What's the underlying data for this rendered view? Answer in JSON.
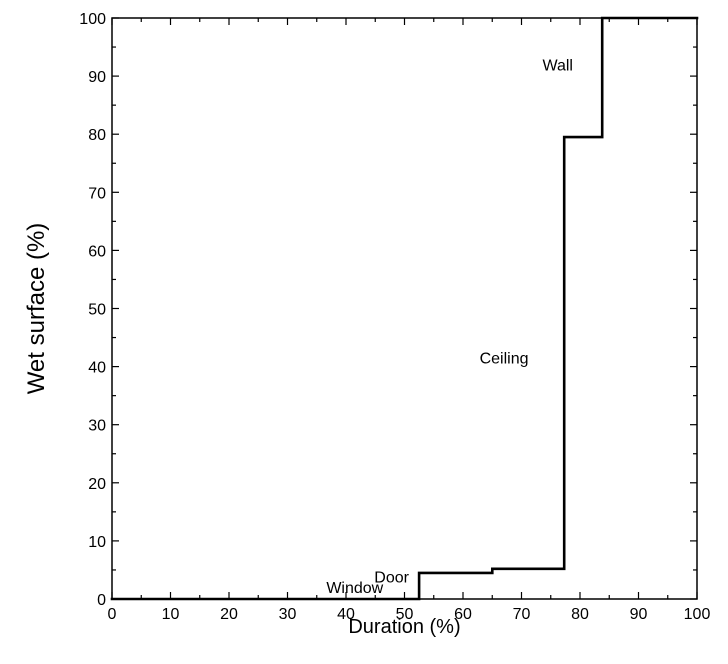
{
  "chart_data": {
    "type": "line",
    "title": "",
    "xlabel": "Duration (%)",
    "ylabel": "Wet surface (%)",
    "xlim": [
      0,
      100
    ],
    "ylim": [
      0,
      100
    ],
    "xticks": [
      0,
      10,
      20,
      30,
      40,
      50,
      60,
      70,
      80,
      90,
      100
    ],
    "yticks": [
      0,
      10,
      20,
      30,
      40,
      50,
      60,
      70,
      80,
      90,
      100
    ],
    "grid": false,
    "line_color": "#000000",
    "step": true,
    "series": [
      {
        "x": [
          0,
          52.5,
          52.5,
          65,
          65,
          77.3,
          77.3,
          83.8,
          83.8,
          100
        ],
        "y": [
          0,
          0,
          4.5,
          4.5,
          5.2,
          5.2,
          79.5,
          79.5,
          100,
          100
        ]
      }
    ],
    "annotations": [
      {
        "text": "Window",
        "x": 41.5,
        "y": 1.0
      },
      {
        "text": "Door",
        "x": 47.8,
        "y": 2.8
      },
      {
        "text": "Ceiling",
        "x": 71.2,
        "y": 40.5
      },
      {
        "text": "Wall",
        "x": 78.8,
        "y": 91.0
      }
    ]
  }
}
